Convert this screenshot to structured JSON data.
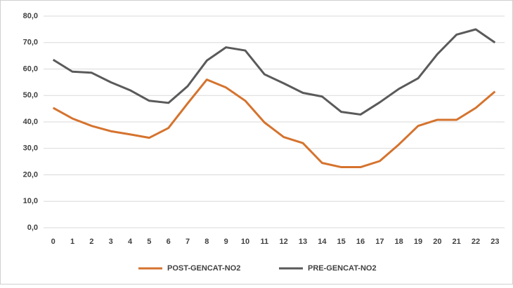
{
  "chart_data": {
    "type": "line",
    "categories": [
      "0",
      "1",
      "2",
      "3",
      "4",
      "5",
      "6",
      "7",
      "8",
      "9",
      "10",
      "11",
      "12",
      "13",
      "14",
      "15",
      "16",
      "17",
      "18",
      "19",
      "20",
      "21",
      "22",
      "23"
    ],
    "series": [
      {
        "name": "POST-GENCAT-NO2",
        "color": "#d5732e",
        "values": [
          45.3,
          41.3,
          38.5,
          36.5,
          35.3,
          34.0,
          37.7,
          47.0,
          56.0,
          53.0,
          48.0,
          39.8,
          34.3,
          32.0,
          24.5,
          22.9,
          22.9,
          25.2,
          31.5,
          38.5,
          40.8,
          40.8,
          45.3,
          51.5
        ]
      },
      {
        "name": "PRE-GENCAT-NO2",
        "color": "#5a5a5a",
        "values": [
          63.5,
          59.0,
          58.6,
          55.0,
          52.0,
          48.0,
          47.2,
          53.5,
          63.2,
          68.2,
          67.0,
          58.0,
          54.6,
          51.0,
          49.6,
          43.8,
          42.8,
          47.4,
          52.5,
          56.5,
          65.6,
          73.0,
          75.0,
          70.0
        ]
      }
    ],
    "ylim": [
      0,
      80
    ],
    "yticks": [
      {
        "value": 0,
        "label": "0,0"
      },
      {
        "value": 10,
        "label": "10,0"
      },
      {
        "value": 20,
        "label": "20,0"
      },
      {
        "value": 30,
        "label": "30,0"
      },
      {
        "value": 40,
        "label": "40,0"
      },
      {
        "value": 50,
        "label": "50,0"
      },
      {
        "value": 60,
        "label": "60,0"
      },
      {
        "value": 70,
        "label": "70,0"
      },
      {
        "value": 80,
        "label": "80,0"
      }
    ],
    "grid": true,
    "legend": "bottom"
  }
}
